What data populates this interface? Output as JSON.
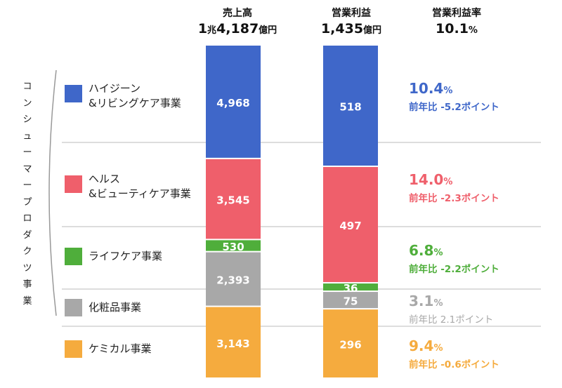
{
  "headers": {
    "sales_title": "売上高",
    "sales_value_num": "1",
    "sales_value_unit1": "兆",
    "sales_value_num2": "4,187",
    "sales_value_unit2": "億円",
    "op_title": "営業利益",
    "op_value_num": "1,435",
    "op_value_unit": "億円",
    "rate_title": "営業利益率",
    "rate_value_num": "10.1",
    "rate_value_unit": "%"
  },
  "side_group_label": [
    "コ",
    "ン",
    "シ",
    "ュ",
    "ー",
    "マ",
    "ー",
    "プ",
    "ロ",
    "ダ",
    "ク",
    "ツ",
    "事",
    "業"
  ],
  "segments": [
    {
      "label_line1": "ハイジーン",
      "label_line2": "&リビングケア事業",
      "color": "#3f67c9"
    },
    {
      "label_line1": "ヘルス",
      "label_line2": "&ビューティケア事業",
      "color": "#ef5f6b"
    },
    {
      "label_line1": "ライフケア事業",
      "label_line2": "",
      "color": "#4fae3b"
    },
    {
      "label_line1": "化粧品事業",
      "label_line2": "",
      "color": "#a8a8a8"
    },
    {
      "label_line1": "ケミカル事業",
      "label_line2": "",
      "color": "#f5ab3e"
    }
  ],
  "rates": [
    {
      "value": "10.4",
      "unit": "%",
      "change": "前年比 -5.2ポイント",
      "color": "#3f67c9"
    },
    {
      "value": "14.0",
      "unit": "%",
      "change": "前年比 -2.3ポイント",
      "color": "#ef5f6b"
    },
    {
      "value": "6.8",
      "unit": "%",
      "change": "前年比 -2.2ポイント",
      "color": "#4fae3b"
    },
    {
      "value": "3.1",
      "unit": "%",
      "change": "前年比 2.1ポイント",
      "color": "#a8a8a8"
    },
    {
      "value": "9.4",
      "unit": "%",
      "change": "前年比 -0.6ポイント",
      "color": "#f5ab3e"
    }
  ],
  "chart_data": {
    "type": "bar",
    "stacked": true,
    "unit": "億円",
    "categories": [
      "売上高",
      "営業利益"
    ],
    "series": [
      {
        "name": "ハイジーン&リビングケア事業",
        "values": [
          4968,
          518
        ],
        "color": "#3f67c9"
      },
      {
        "name": "ヘルス&ビューティケア事業",
        "values": [
          3545,
          497
        ],
        "color": "#ef5f6b"
      },
      {
        "name": "ライフケア事業",
        "values": [
          530,
          36
        ],
        "color": "#4fae3b"
      },
      {
        "name": "化粧品事業",
        "values": [
          2393,
          75
        ],
        "color": "#a8a8a8"
      },
      {
        "name": "ケミカル事業",
        "values": [
          3143,
          296
        ],
        "color": "#f5ab3e"
      }
    ]
  }
}
